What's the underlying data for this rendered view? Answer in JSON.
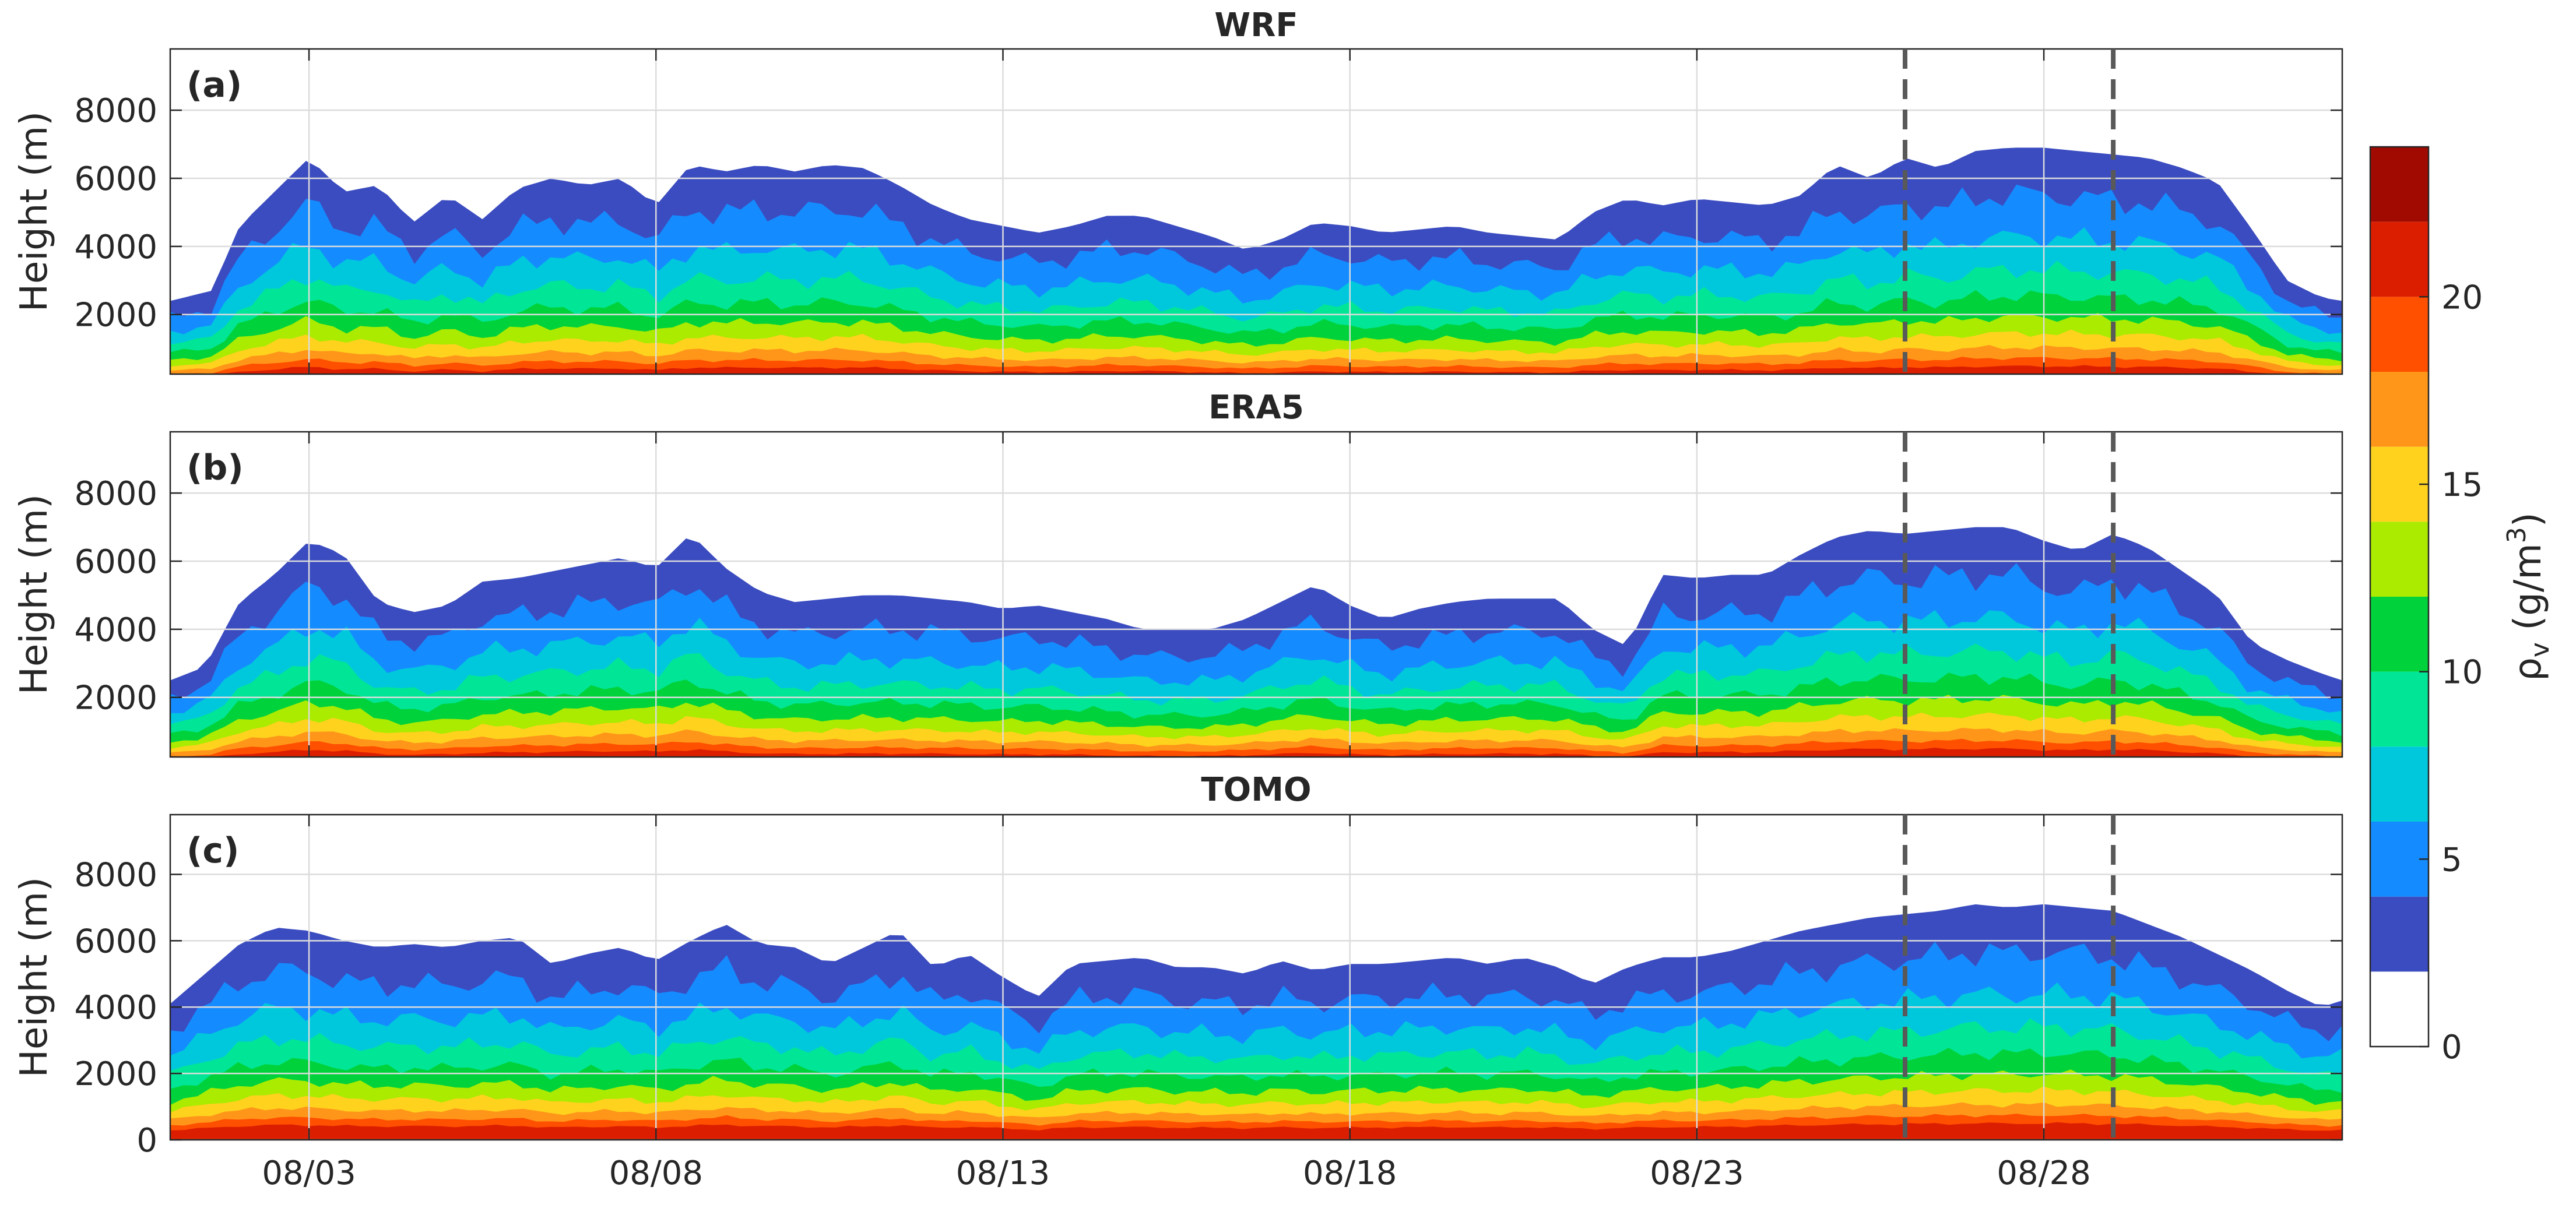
{
  "chart_data": {
    "type": "filled-contour",
    "variable": "water vapor density",
    "x": {
      "range_days": [
        0,
        31.3
      ],
      "ticks": [
        {
          "day": 2,
          "label": "08/03"
        },
        {
          "day": 7,
          "label": "08/08"
        },
        {
          "day": 12,
          "label": "08/13"
        },
        {
          "day": 17,
          "label": "08/18"
        },
        {
          "day": 22,
          "label": "08/23"
        },
        {
          "day": 27,
          "label": "08/28"
        }
      ],
      "event_lines_days": [
        25,
        28
      ]
    },
    "colorbar": {
      "label": "ρv (g/m3)",
      "label_main": "ρ",
      "label_sub": "v",
      "label_unit_pre": " (g/m",
      "label_unit_sup": "3",
      "label_unit_post": ")",
      "range": [
        0,
        24
      ],
      "ticks": [
        0,
        5,
        10,
        15,
        20
      ],
      "tick_labels": [
        "0",
        "5",
        "10",
        "15",
        "20"
      ],
      "levels": [
        0,
        2,
        4,
        6,
        8,
        10,
        12,
        14,
        16,
        18,
        20,
        22,
        24
      ],
      "colors": [
        "#ffffff",
        "#3b4cc0",
        "#148cff",
        "#00c8dc",
        "#00e696",
        "#00d23c",
        "#aaeb00",
        "#ffd21e",
        "#ff9619",
        "#ff5000",
        "#dc1e00",
        "#a00a00"
      ]
    },
    "panels": [
      {
        "id": "a",
        "tag": "(a)",
        "title": "WRF",
        "ylabel": "Height (m)",
        "ylim": [
          250,
          9800
        ],
        "yticks": [
          2000,
          4000,
          6000,
          8000
        ],
        "ytick_labels": [
          "2000",
          "4000",
          "6000",
          "8000"
        ],
        "cloud_top_profile": [
          [
            0,
            2400
          ],
          [
            0.6,
            2700
          ],
          [
            1,
            4600
          ],
          [
            1.5,
            5600
          ],
          [
            2,
            6600
          ],
          [
            2.5,
            5600
          ],
          [
            3,
            5800
          ],
          [
            3.5,
            4700
          ],
          [
            4,
            5500
          ],
          [
            4.5,
            4800
          ],
          [
            5,
            5700
          ],
          [
            5.5,
            6000
          ],
          [
            6,
            5800
          ],
          [
            6.5,
            6000
          ],
          [
            7,
            5200
          ],
          [
            7.5,
            6400
          ],
          [
            8,
            6200
          ],
          [
            8.5,
            6400
          ],
          [
            9,
            6200
          ],
          [
            9.5,
            6400
          ],
          [
            10,
            6300
          ],
          [
            10.5,
            5800
          ],
          [
            11,
            5200
          ],
          [
            11.5,
            4800
          ],
          [
            12,
            4600
          ],
          [
            12.5,
            4400
          ],
          [
            13,
            4600
          ],
          [
            13.5,
            4900
          ],
          [
            14,
            4900
          ],
          [
            14.5,
            4600
          ],
          [
            15,
            4300
          ],
          [
            15.5,
            3900
          ],
          [
            16,
            4200
          ],
          [
            16.5,
            4700
          ],
          [
            17,
            4600
          ],
          [
            17.5,
            4400
          ],
          [
            18,
            4500
          ],
          [
            18.5,
            4600
          ],
          [
            19,
            4400
          ],
          [
            19.5,
            4300
          ],
          [
            20,
            4200
          ],
          [
            20.5,
            5000
          ],
          [
            21,
            5400
          ],
          [
            21.5,
            5200
          ],
          [
            22,
            5400
          ],
          [
            22.5,
            5300
          ],
          [
            23,
            5200
          ],
          [
            23.5,
            5500
          ],
          [
            24,
            6400
          ],
          [
            24.5,
            6000
          ],
          [
            25,
            6600
          ],
          [
            25.5,
            6300
          ],
          [
            26,
            6800
          ],
          [
            26.5,
            6900
          ],
          [
            27,
            6900
          ],
          [
            27.5,
            6800
          ],
          [
            28,
            6700
          ],
          [
            28.5,
            6600
          ],
          [
            29,
            6300
          ],
          [
            29.5,
            5900
          ],
          [
            30,
            4500
          ],
          [
            30.5,
            3000
          ],
          [
            31,
            2500
          ],
          [
            31.3,
            2400
          ]
        ]
      },
      {
        "id": "b",
        "tag": "(b)",
        "title": "ERA5",
        "ylabel": "Height (m)",
        "ylim": [
          250,
          9800
        ],
        "yticks": [
          2000,
          4000,
          6000,
          8000
        ],
        "ytick_labels": [
          "2000",
          "4000",
          "6000",
          "8000"
        ],
        "cloud_top_profile": [
          [
            0,
            2500
          ],
          [
            0.5,
            2900
          ],
          [
            1,
            4800
          ],
          [
            1.5,
            5600
          ],
          [
            2,
            6600
          ],
          [
            2.5,
            6200
          ],
          [
            3,
            4800
          ],
          [
            3.5,
            4500
          ],
          [
            4,
            4700
          ],
          [
            4.5,
            5400
          ],
          [
            5,
            5500
          ],
          [
            5.5,
            5700
          ],
          [
            6,
            5900
          ],
          [
            6.5,
            6100
          ],
          [
            7,
            5800
          ],
          [
            7.5,
            6800
          ],
          [
            8,
            5800
          ],
          [
            8.5,
            5100
          ],
          [
            9,
            4800
          ],
          [
            9.5,
            4900
          ],
          [
            10,
            5000
          ],
          [
            10.5,
            5000
          ],
          [
            11,
            4900
          ],
          [
            11.5,
            4800
          ],
          [
            12,
            4600
          ],
          [
            12.5,
            4700
          ],
          [
            13,
            4500
          ],
          [
            13.5,
            4300
          ],
          [
            14,
            4000
          ],
          [
            14.5,
            4000
          ],
          [
            15,
            4000
          ],
          [
            15.5,
            4300
          ],
          [
            16,
            4800
          ],
          [
            16.5,
            5300
          ],
          [
            17,
            4700
          ],
          [
            17.5,
            4300
          ],
          [
            18,
            4600
          ],
          [
            18.5,
            4800
          ],
          [
            19,
            4900
          ],
          [
            19.5,
            4900
          ],
          [
            20,
            4900
          ],
          [
            20.5,
            4000
          ],
          [
            21,
            3500
          ],
          [
            21.5,
            5600
          ],
          [
            22,
            5500
          ],
          [
            22.5,
            5600
          ],
          [
            23,
            5600
          ],
          [
            23.5,
            6200
          ],
          [
            24,
            6700
          ],
          [
            24.5,
            6900
          ],
          [
            25,
            6800
          ],
          [
            25.5,
            6900
          ],
          [
            26,
            7000
          ],
          [
            26.5,
            7000
          ],
          [
            27,
            6600
          ],
          [
            27.5,
            6300
          ],
          [
            28,
            6800
          ],
          [
            28.5,
            6400
          ],
          [
            29,
            5700
          ],
          [
            29.5,
            5000
          ],
          [
            30,
            3600
          ],
          [
            30.5,
            3100
          ],
          [
            31,
            2700
          ],
          [
            31.3,
            2500
          ]
        ]
      },
      {
        "id": "c",
        "tag": "(c)",
        "title": "TOMO",
        "ylabel": "Height (m)",
        "ylim": [
          0,
          9800
        ],
        "yticks": [
          0,
          2000,
          4000,
          6000,
          8000
        ],
        "ytick_labels": [
          "0",
          "2000",
          "4000",
          "6000",
          "8000"
        ],
        "cloud_top_profile": [
          [
            0,
            4100
          ],
          [
            0.5,
            5000
          ],
          [
            1,
            5900
          ],
          [
            1.5,
            6400
          ],
          [
            2,
            6300
          ],
          [
            2.5,
            6000
          ],
          [
            3,
            5800
          ],
          [
            3.5,
            5900
          ],
          [
            4,
            5800
          ],
          [
            4.5,
            6000
          ],
          [
            5,
            6100
          ],
          [
            5.5,
            5300
          ],
          [
            6,
            5600
          ],
          [
            6.5,
            5800
          ],
          [
            7,
            5400
          ],
          [
            7.5,
            6000
          ],
          [
            8,
            6500
          ],
          [
            8.5,
            5900
          ],
          [
            9,
            5800
          ],
          [
            9.5,
            5300
          ],
          [
            10,
            5800
          ],
          [
            10.5,
            6300
          ],
          [
            11,
            5200
          ],
          [
            11.5,
            5600
          ],
          [
            12,
            4900
          ],
          [
            12.5,
            4300
          ],
          [
            13,
            5300
          ],
          [
            13.5,
            5400
          ],
          [
            14,
            5500
          ],
          [
            14.5,
            5200
          ],
          [
            15,
            5200
          ],
          [
            15.5,
            5000
          ],
          [
            16,
            5400
          ],
          [
            16.5,
            5100
          ],
          [
            17,
            5300
          ],
          [
            17.5,
            5300
          ],
          [
            18,
            5400
          ],
          [
            18.5,
            5500
          ],
          [
            19,
            5300
          ],
          [
            19.5,
            5500
          ],
          [
            20,
            5200
          ],
          [
            20.5,
            4700
          ],
          [
            21,
            5200
          ],
          [
            21.5,
            5500
          ],
          [
            22,
            5500
          ],
          [
            22.5,
            5700
          ],
          [
            23,
            6000
          ],
          [
            23.5,
            6300
          ],
          [
            24,
            6500
          ],
          [
            24.5,
            6700
          ],
          [
            25,
            6800
          ],
          [
            25.5,
            6900
          ],
          [
            26,
            7100
          ],
          [
            26.5,
            7000
          ],
          [
            27,
            7100
          ],
          [
            27.5,
            7000
          ],
          [
            28,
            6900
          ],
          [
            28.5,
            6500
          ],
          [
            29,
            6100
          ],
          [
            29.5,
            5600
          ],
          [
            30,
            5100
          ],
          [
            30.5,
            4500
          ],
          [
            31,
            4000
          ],
          [
            31.3,
            4200
          ]
        ]
      }
    ]
  }
}
